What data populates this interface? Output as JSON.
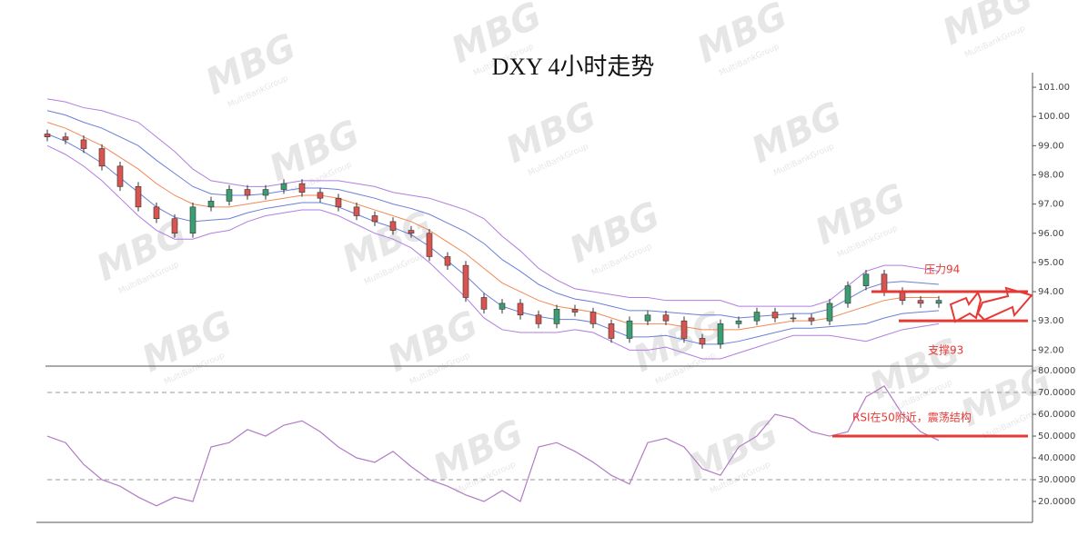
{
  "chart_data": [
    {
      "type": "candlestick",
      "title": "DXY 4小时走势",
      "watermark": "MBG",
      "watermark_sub": "MultiBankGroup",
      "up_color": "#3a9e72",
      "down_color": "#d9534f",
      "open": [
        99.4,
        99.3,
        99.2,
        98.9,
        98.3,
        97.6,
        96.9,
        96.5,
        96.0,
        96.9,
        97.1,
        97.5,
        97.3,
        97.5,
        97.7,
        97.4,
        97.2,
        96.9,
        96.6,
        96.4,
        96.1,
        96.0,
        95.2,
        94.9,
        93.8,
        93.4,
        93.6,
        93.2,
        92.9,
        93.4,
        93.3,
        92.9,
        92.4,
        93.0,
        93.2,
        93.0,
        92.4,
        92.2,
        92.9,
        93.0,
        93.3,
        93.1,
        93.1,
        93.0,
        93.6,
        94.2,
        94.6,
        94.0,
        93.7,
        93.6
      ],
      "high": [
        99.55,
        99.45,
        99.35,
        99.05,
        98.45,
        97.75,
        97.05,
        96.65,
        97.05,
        97.25,
        97.65,
        97.65,
        97.65,
        97.85,
        97.85,
        97.55,
        97.35,
        97.05,
        96.75,
        96.55,
        96.25,
        96.15,
        95.35,
        95.05,
        93.95,
        93.75,
        93.75,
        93.35,
        93.55,
        93.55,
        93.45,
        93.05,
        93.15,
        93.35,
        93.35,
        93.15,
        92.55,
        93.05,
        93.15,
        93.45,
        93.45,
        93.25,
        93.25,
        93.75,
        94.35,
        94.75,
        94.75,
        94.15,
        93.85,
        93.85
      ],
      "low": [
        99.15,
        99.05,
        98.75,
        98.15,
        97.45,
        96.75,
        96.35,
        95.85,
        95.85,
        96.75,
        96.95,
        97.15,
        97.15,
        97.35,
        97.25,
        97.05,
        96.75,
        96.45,
        96.25,
        95.95,
        95.85,
        95.05,
        94.75,
        93.65,
        93.25,
        93.25,
        93.05,
        92.75,
        92.75,
        93.15,
        92.75,
        92.25,
        92.25,
        92.85,
        92.85,
        92.25,
        92.05,
        92.05,
        92.75,
        92.85,
        92.95,
        92.95,
        92.85,
        92.85,
        93.45,
        94.05,
        93.85,
        93.55,
        93.45,
        93.45
      ],
      "close": [
        99.3,
        99.2,
        98.9,
        98.3,
        97.6,
        96.9,
        96.5,
        96.0,
        96.9,
        97.1,
        97.5,
        97.3,
        97.5,
        97.7,
        97.4,
        97.2,
        96.9,
        96.6,
        96.4,
        96.1,
        96.0,
        95.2,
        94.9,
        93.8,
        93.4,
        93.6,
        93.2,
        92.9,
        93.4,
        93.3,
        92.9,
        92.4,
        93.0,
        93.2,
        93.0,
        92.4,
        92.2,
        92.9,
        93.0,
        93.3,
        93.1,
        93.1,
        93.0,
        93.6,
        94.2,
        94.6,
        94.0,
        93.7,
        93.6,
        93.7
      ],
      "series": [
        {
          "color": "#b07ee0",
          "values": [
            100.6,
            100.5,
            100.3,
            100.2,
            100.0,
            99.8,
            99.3,
            98.8,
            98.2,
            97.8,
            97.7,
            97.6,
            97.6,
            97.7,
            97.8,
            97.8,
            97.8,
            97.7,
            97.6,
            97.4,
            97.3,
            97.2,
            97.0,
            96.8,
            96.5,
            95.9,
            95.4,
            94.8,
            94.4,
            94.1,
            94.0,
            93.9,
            93.8,
            93.8,
            93.7,
            93.7,
            93.7,
            93.7,
            93.5,
            93.5,
            93.5,
            93.5,
            93.5,
            93.7,
            94.2,
            94.7,
            94.9,
            94.9,
            94.8,
            94.7
          ]
        },
        {
          "color": "#6b7fd8",
          "values": [
            100.2,
            100.05,
            99.8,
            99.6,
            99.3,
            99.0,
            98.5,
            98.05,
            97.6,
            97.35,
            97.3,
            97.3,
            97.35,
            97.45,
            97.55,
            97.55,
            97.5,
            97.35,
            97.2,
            97.0,
            96.85,
            96.65,
            96.35,
            96.05,
            95.65,
            95.1,
            94.7,
            94.25,
            93.95,
            93.75,
            93.65,
            93.5,
            93.35,
            93.35,
            93.3,
            93.25,
            93.2,
            93.2,
            93.1,
            93.15,
            93.2,
            93.25,
            93.25,
            93.4,
            93.75,
            94.1,
            94.3,
            94.35,
            94.3,
            94.25
          ]
        },
        {
          "color": "#ef8a55",
          "values": [
            99.8,
            99.6,
            99.3,
            99.0,
            98.6,
            98.2,
            97.7,
            97.3,
            97.0,
            96.9,
            96.9,
            97.0,
            97.1,
            97.2,
            97.3,
            97.3,
            97.2,
            97.0,
            96.8,
            96.6,
            96.4,
            96.1,
            95.7,
            95.3,
            94.8,
            94.3,
            94.0,
            93.7,
            93.5,
            93.4,
            93.3,
            93.1,
            92.9,
            92.9,
            92.9,
            92.8,
            92.7,
            92.7,
            92.7,
            92.8,
            92.9,
            93.0,
            93.0,
            93.1,
            93.3,
            93.5,
            93.7,
            93.8,
            93.8,
            93.8
          ]
        },
        {
          "color": "#6b7fd8",
          "values": [
            99.4,
            99.15,
            98.8,
            98.4,
            97.9,
            97.4,
            96.9,
            96.55,
            96.4,
            96.45,
            96.5,
            96.7,
            96.85,
            96.95,
            97.05,
            97.05,
            96.9,
            96.65,
            96.4,
            96.2,
            95.95,
            95.55,
            95.05,
            94.55,
            93.95,
            93.5,
            93.3,
            93.15,
            93.05,
            93.05,
            92.95,
            92.7,
            92.45,
            92.45,
            92.5,
            92.35,
            92.2,
            92.2,
            92.3,
            92.45,
            92.6,
            92.75,
            92.75,
            92.8,
            92.85,
            92.9,
            93.1,
            93.25,
            93.3,
            93.35
          ]
        },
        {
          "color": "#b07ee0",
          "values": [
            99.0,
            98.7,
            98.3,
            97.8,
            97.2,
            96.6,
            96.1,
            95.8,
            95.8,
            96.0,
            96.1,
            96.4,
            96.6,
            96.7,
            96.8,
            96.8,
            96.6,
            96.3,
            96.0,
            95.8,
            95.5,
            95.0,
            94.4,
            93.8,
            93.1,
            92.7,
            92.6,
            92.6,
            92.6,
            92.7,
            92.6,
            92.3,
            92.0,
            92.0,
            92.1,
            91.9,
            91.7,
            91.7,
            91.9,
            92.1,
            92.3,
            92.5,
            92.5,
            92.5,
            92.4,
            92.3,
            92.5,
            92.7,
            92.8,
            92.9
          ]
        }
      ],
      "levels": [
        {
          "value": 94,
          "label": "压力94",
          "color": "#e53935"
        },
        {
          "value": 93,
          "label": "支撑93",
          "color": "#e53935"
        }
      ],
      "ylim": [
        91.45,
        101.5
      ],
      "yticks": [
        {
          "value": 92,
          "label": "92.00"
        },
        {
          "value": 93,
          "label": "93.00"
        },
        {
          "value": 94,
          "label": "94.00"
        },
        {
          "value": 95,
          "label": "95.00"
        },
        {
          "value": 96,
          "label": "96.00"
        },
        {
          "value": 97,
          "label": "97.00"
        },
        {
          "value": 98,
          "label": "98.00"
        },
        {
          "value": 99,
          "label": "99.00"
        },
        {
          "value": 100,
          "label": "100.00"
        },
        {
          "value": 101,
          "label": "101.00"
        }
      ]
    },
    {
      "type": "line",
      "color": "#b27bc4",
      "values": [
        50,
        47,
        37,
        30,
        27,
        22,
        18,
        22,
        20,
        45,
        47,
        53,
        50,
        55,
        57,
        52,
        45,
        40,
        38,
        43,
        36,
        30,
        27,
        23,
        20,
        25,
        20,
        45,
        47,
        43,
        38,
        32,
        28,
        47,
        49,
        45,
        35,
        32,
        45,
        50,
        60,
        58,
        52,
        50,
        52,
        68,
        73,
        60,
        52,
        48
      ],
      "ref_lines": [
        30,
        70
      ],
      "levels": [
        {
          "value": 50,
          "label": "RSI在50附近，震荡结构",
          "color": "#e53935"
        }
      ],
      "ylim": [
        10.4,
        81.7
      ],
      "yticks": [
        {
          "value": 20,
          "label": "20.0000"
        },
        {
          "value": 30,
          "label": "30.0000"
        },
        {
          "value": 40,
          "label": "40.0000"
        },
        {
          "value": 50,
          "label": "50.0000"
        },
        {
          "value": 60,
          "label": "60.0000"
        },
        {
          "value": 70,
          "label": "70.0000"
        },
        {
          "value": 80,
          "label": "80.0000"
        }
      ]
    }
  ]
}
